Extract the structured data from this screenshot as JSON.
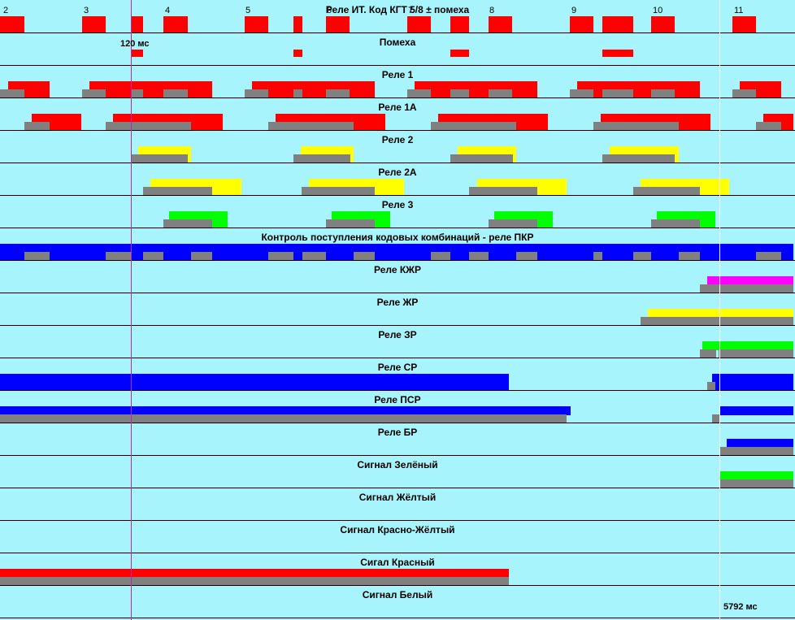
{
  "window": {
    "title": "Реле ИТ. Код КГТ 5/8 ± помеха"
  },
  "cursor_left": {
    "label": "120 мс",
    "color": "#c020c0"
  },
  "cursor_right": {
    "label": "5792 мс",
    "color": "#ffffff"
  },
  "ticks": [
    "2",
    "3",
    "4",
    "5",
    "6",
    "7",
    "8",
    "9",
    "10",
    "11"
  ],
  "colors": {
    "background": "#a8f4fc",
    "red": "#ff0000",
    "gray": "#808080",
    "yellow": "#ffff00",
    "green": "#00ff00",
    "blue": "#0000ff",
    "magenta": "#ff00ff"
  },
  "channels": [
    {
      "id": "code",
      "title": "Реле ИТ. Код КГТ 5/8 ± помеха"
    },
    {
      "id": "noise",
      "title": "Помеха"
    },
    {
      "id": "relay1",
      "title": "Реле 1"
    },
    {
      "id": "relay1a",
      "title": "Реле 1А"
    },
    {
      "id": "relay2",
      "title": "Реле 2"
    },
    {
      "id": "relay2a",
      "title": "Реле 2А"
    },
    {
      "id": "relay3",
      "title": "Реле 3"
    },
    {
      "id": "pkr",
      "title": "Контроль поступления кодовых комбинаций - реле ПКР"
    },
    {
      "id": "kzhr",
      "title": "Реле КЖР"
    },
    {
      "id": "zhr",
      "title": "Реле ЖР"
    },
    {
      "id": "zr",
      "title": "Реле ЗР"
    },
    {
      "id": "sr",
      "title": "Реле СР"
    },
    {
      "id": "psr",
      "title": "Реле ПСР"
    },
    {
      "id": "br",
      "title": "Реле БР"
    },
    {
      "id": "sig_green",
      "title": "Сигнал Зелёный"
    },
    {
      "id": "sig_yellow",
      "title": "Сигнал Жёлтый"
    },
    {
      "id": "sig_ry",
      "title": "Сигнал Красно-Жёлтый"
    },
    {
      "id": "sig_red",
      "title": "Сигал Красный"
    },
    {
      "id": "sig_white",
      "title": "Сигнал Белый"
    }
  ]
}
